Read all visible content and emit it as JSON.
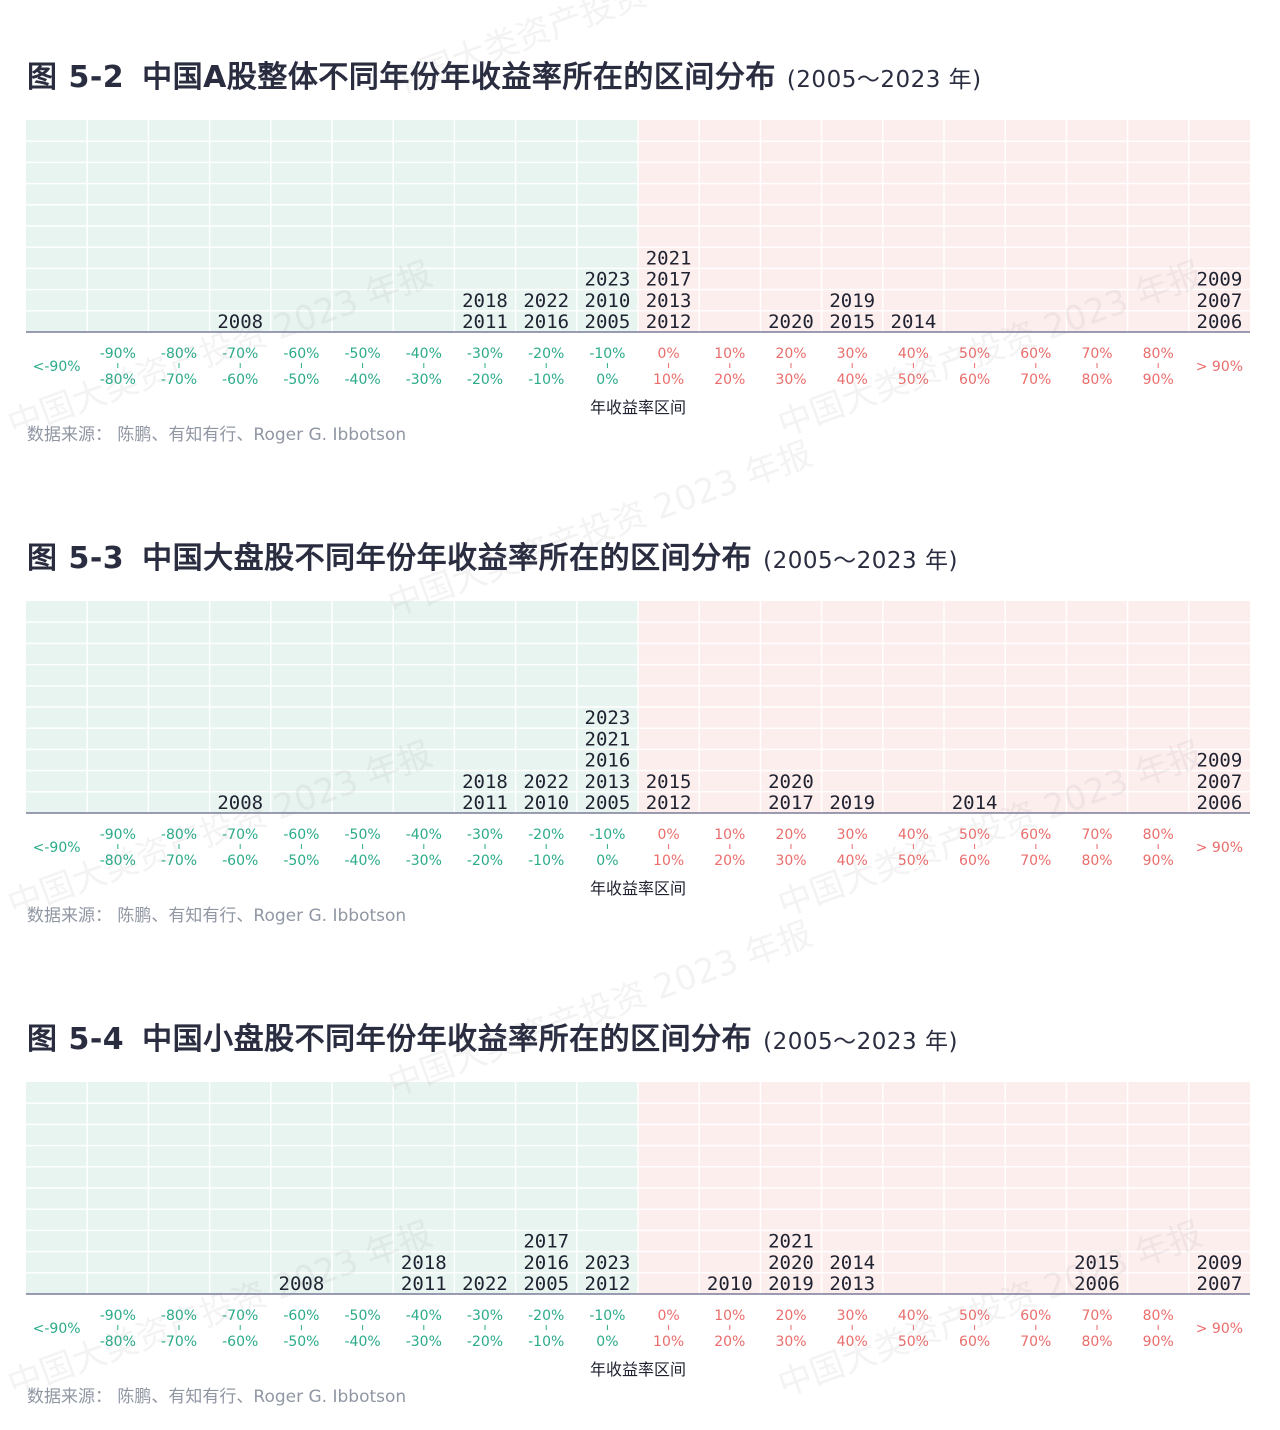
{
  "colors": {
    "negative_bg": "#e8f4f0",
    "positive_bg": "#fdeeee",
    "negative_text": "#2bab8a",
    "positive_text": "#ea6d6b",
    "axis": "#7b7c99",
    "title": "#2a2d40",
    "source": "#9097a3"
  },
  "watermark": "中国大类资产投资 2023 年报",
  "bins": [
    {
      "top": "<-90%",
      "bottom": "",
      "sign": "neg"
    },
    {
      "top": "-90%",
      "bottom": "-80%",
      "sign": "neg"
    },
    {
      "top": "-80%",
      "bottom": "-70%",
      "sign": "neg"
    },
    {
      "top": "-70%",
      "bottom": "-60%",
      "sign": "neg"
    },
    {
      "top": "-60%",
      "bottom": "-50%",
      "sign": "neg"
    },
    {
      "top": "-50%",
      "bottom": "-40%",
      "sign": "neg"
    },
    {
      "top": "-40%",
      "bottom": "-30%",
      "sign": "neg"
    },
    {
      "top": "-30%",
      "bottom": "-20%",
      "sign": "neg"
    },
    {
      "top": "-20%",
      "bottom": "-10%",
      "sign": "neg"
    },
    {
      "top": "-10%",
      "bottom": "0%",
      "sign": "neg"
    },
    {
      "top": "0%",
      "bottom": "10%",
      "sign": "pos"
    },
    {
      "top": "10%",
      "bottom": "20%",
      "sign": "pos"
    },
    {
      "top": "20%",
      "bottom": "30%",
      "sign": "pos"
    },
    {
      "top": "30%",
      "bottom": "40%",
      "sign": "pos"
    },
    {
      "top": "40%",
      "bottom": "50%",
      "sign": "pos"
    },
    {
      "top": "50%",
      "bottom": "60%",
      "sign": "pos"
    },
    {
      "top": "60%",
      "bottom": "70%",
      "sign": "pos"
    },
    {
      "top": "70%",
      "bottom": "80%",
      "sign": "pos"
    },
    {
      "top": "80%",
      "bottom": "90%",
      "sign": "pos"
    },
    {
      "top": "> 90%",
      "bottom": "",
      "sign": "pos"
    }
  ],
  "figures": [
    {
      "number": "图 5-2",
      "title": "中国A股整体不同年份年收益率所在的区间分布",
      "range": "(2005～2023 年)",
      "xlabel": "年收益率区间",
      "source": "数据来源：  陈鹏、有知有行、Roger G. Ibbotson"
    },
    {
      "number": "图 5-3",
      "title": "中国大盘股不同年份年收益率所在的区间分布",
      "range": "(2005～2023 年)",
      "xlabel": "年收益率区间",
      "source": "数据来源：  陈鹏、有知有行、Roger G. Ibbotson"
    },
    {
      "number": "图 5-4",
      "title": "中国小盘股不同年份年收益率所在的区间分布",
      "range": "(2005～2023 年)",
      "xlabel": "年收益率区间",
      "source": "数据来源：  陈鹏、有知有行、Roger G. Ibbotson"
    }
  ],
  "chart_data": [
    {
      "type": "table",
      "title": "中国A股整体不同年份年收益率所在的区间分布",
      "xlabel": "年收益率区间",
      "grid": true,
      "bins": [
        "<-90%",
        "-90%~-80%",
        "-80%~-70%",
        "-70%~-60%",
        "-60%~-50%",
        "-50%~-40%",
        "-40%~-30%",
        "-30%~-20%",
        "-20%~-10%",
        "-10%~0%",
        "0%~10%",
        "10%~20%",
        "20%~30%",
        "30%~40%",
        "40%~50%",
        "50%~60%",
        "60%~70%",
        "70%~80%",
        "80%~90%",
        "> 90%"
      ],
      "years": [
        [],
        [],
        [],
        [
          "2008"
        ],
        [],
        [],
        [],
        [
          "2018",
          "2011"
        ],
        [
          "2022",
          "2016"
        ],
        [
          "2023",
          "2010",
          "2005"
        ],
        [
          "2021",
          "2017",
          "2013",
          "2012"
        ],
        [],
        [
          "2020"
        ],
        [
          "2019",
          "2015"
        ],
        [
          "2014"
        ],
        [],
        [],
        [],
        [],
        [
          "2009",
          "2007",
          "2006"
        ]
      ]
    },
    {
      "type": "table",
      "title": "中国大盘股不同年份年收益率所在的区间分布",
      "xlabel": "年收益率区间",
      "grid": true,
      "bins": [
        "<-90%",
        "-90%~-80%",
        "-80%~-70%",
        "-70%~-60%",
        "-60%~-50%",
        "-50%~-40%",
        "-40%~-30%",
        "-30%~-20%",
        "-20%~-10%",
        "-10%~0%",
        "0%~10%",
        "10%~20%",
        "20%~30%",
        "30%~40%",
        "40%~50%",
        "50%~60%",
        "60%~70%",
        "70%~80%",
        "80%~90%",
        "> 90%"
      ],
      "years": [
        [],
        [],
        [],
        [
          "2008"
        ],
        [],
        [],
        [],
        [
          "2018",
          "2011"
        ],
        [
          "2022",
          "2010"
        ],
        [
          "2023",
          "2021",
          "2016",
          "2013",
          "2005"
        ],
        [
          "2015",
          "2012"
        ],
        [],
        [
          "2020",
          "2017"
        ],
        [
          "2019"
        ],
        [],
        [
          "2014"
        ],
        [],
        [],
        [],
        [
          "2009",
          "2007",
          "2006"
        ]
      ]
    },
    {
      "type": "table",
      "title": "中国小盘股不同年份年收益率所在的区间分布",
      "xlabel": "年收益率区间",
      "grid": true,
      "bins": [
        "<-90%",
        "-90%~-80%",
        "-80%~-70%",
        "-70%~-60%",
        "-60%~-50%",
        "-50%~-40%",
        "-40%~-30%",
        "-30%~-20%",
        "-20%~-10%",
        "-10%~0%",
        "0%~10%",
        "10%~20%",
        "20%~30%",
        "30%~40%",
        "40%~50%",
        "50%~60%",
        "60%~70%",
        "70%~80%",
        "80%~90%",
        "> 90%"
      ],
      "years": [
        [],
        [],
        [],
        [],
        [
          "2008"
        ],
        [],
        [
          "2018",
          "2011"
        ],
        [
          "2022"
        ],
        [
          "2017",
          "2016",
          "2005"
        ],
        [
          "2023",
          "2012"
        ],
        [],
        [
          "2010"
        ],
        [
          "2021",
          "2020",
          "2019"
        ],
        [
          "2014",
          "2013"
        ],
        [],
        [],
        [],
        [
          "2015",
          "2006"
        ],
        [],
        [
          "2009",
          "2007"
        ]
      ]
    }
  ]
}
